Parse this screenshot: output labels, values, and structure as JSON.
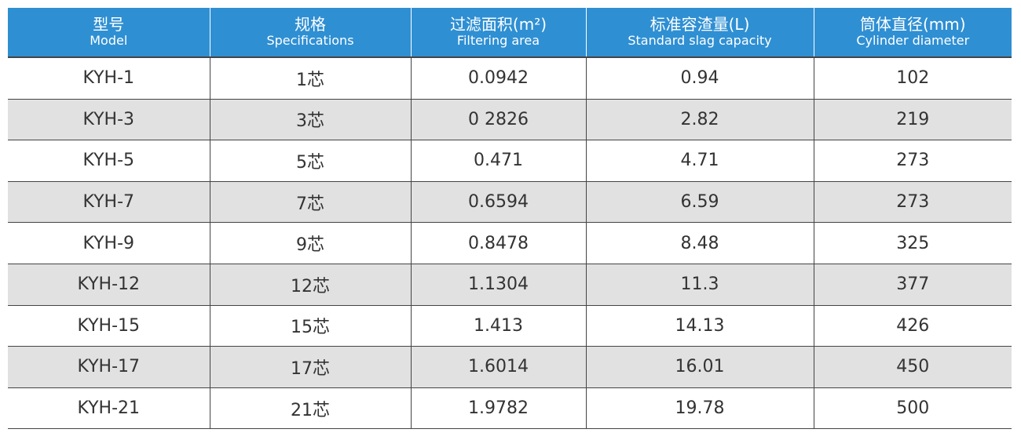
{
  "table": {
    "columns": [
      {
        "title": "型号",
        "subtitle": "Model"
      },
      {
        "title": "规格",
        "subtitle": "Specifications"
      },
      {
        "title": "过滤面积(m²)",
        "subtitle": "Filtering area"
      },
      {
        "title": "标准容渣量(L)",
        "subtitle": "Standard slag capacity"
      },
      {
        "title": "筒体直径(mm)",
        "subtitle": "Cylinder diameter"
      }
    ],
    "rows": [
      [
        "KYH-1",
        "1芯",
        "0.0942",
        "0.94",
        "102"
      ],
      [
        "KYH-3",
        "3芯",
        "0 2826",
        "2.82",
        "219"
      ],
      [
        "KYH-5",
        "5芯",
        "0.471",
        "4.71",
        "273"
      ],
      [
        "KYH-7",
        "7芯",
        "0.6594",
        "6.59",
        "273"
      ],
      [
        "KYH-9",
        "9芯",
        "0.8478",
        "8.48",
        "325"
      ],
      [
        "KYH-12",
        "12芯",
        "1.1304",
        "11.3",
        "377"
      ],
      [
        "KYH-15",
        "15芯",
        "1.413",
        "14.13",
        "426"
      ],
      [
        "KYH-17",
        "17芯",
        "1.6014",
        "16.01",
        "450"
      ],
      [
        "KYH-21",
        "21芯",
        "1.9782",
        "19.78",
        "500"
      ]
    ]
  }
}
